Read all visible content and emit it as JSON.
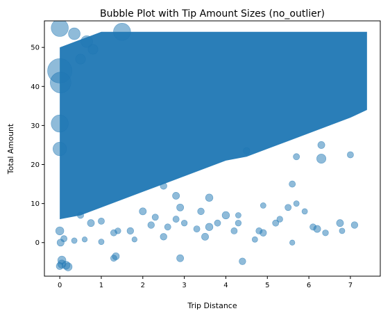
{
  "chart_data": {
    "type": "scatter",
    "title": "Bubble Plot with Tip Amount Sizes (no_outlier)",
    "xlabel": "Trip Distance",
    "ylabel": "Total Amount",
    "xlim": [
      -0.37,
      7.72
    ],
    "ylim": [
      -8.6,
      56.8
    ],
    "xticks": [
      0,
      1,
      2,
      3,
      4,
      5,
      6,
      7
    ],
    "yticks": [
      0,
      10,
      20,
      30,
      40,
      50
    ],
    "grid": false,
    "size_encoding": "tip_amount",
    "color": "#1f77b4",
    "alpha": 0.5,
    "density_band": {
      "x": [
        0,
        0.5,
        1,
        1.5,
        2,
        2.5,
        3,
        3.5,
        4,
        4.5,
        5,
        5.5,
        6,
        6.5,
        7,
        7.4
      ],
      "y_low": [
        6,
        7,
        9,
        11,
        13,
        15,
        17,
        19,
        21,
        22,
        24,
        26,
        28,
        30,
        32,
        34
      ],
      "y_high": [
        50,
        52,
        54,
        54,
        54,
        54,
        54,
        54,
        54,
        54,
        54,
        54,
        54,
        54,
        54,
        54
      ]
    },
    "points": [
      {
        "x": 0.0,
        "y": 55.0,
        "size": 4
      },
      {
        "x": 0.0,
        "y": 44.0,
        "size": 6
      },
      {
        "x": 0.02,
        "y": 41.0,
        "size": 5
      },
      {
        "x": 0.0,
        "y": 30.5,
        "size": 4
      },
      {
        "x": 0.0,
        "y": 24.0,
        "size": 3
      },
      {
        "x": 0.0,
        "y": 3.0,
        "size": 1.5
      },
      {
        "x": 0.02,
        "y": 0.0,
        "size": 1.2
      },
      {
        "x": 0.05,
        "y": -4.5,
        "size": 1.5
      },
      {
        "x": 0.05,
        "y": -5.5,
        "size": 1.5
      },
      {
        "x": 0.0,
        "y": -6.0,
        "size": 1.2
      },
      {
        "x": 0.15,
        "y": -5.8,
        "size": 1.5
      },
      {
        "x": 0.2,
        "y": -6.2,
        "size": 1.5
      },
      {
        "x": 0.1,
        "y": 1.0,
        "size": 1.0
      },
      {
        "x": 0.35,
        "y": 0.5,
        "size": 0.8
      },
      {
        "x": 0.5,
        "y": 47.0,
        "size": 2
      },
      {
        "x": 0.65,
        "y": 51.5,
        "size": 2.5
      },
      {
        "x": 0.8,
        "y": 49.5,
        "size": 2
      },
      {
        "x": 0.35,
        "y": 53.5,
        "size": 2.5
      },
      {
        "x": 1.5,
        "y": 54.0,
        "size": 4
      },
      {
        "x": 0.5,
        "y": 7.0,
        "size": 1
      },
      {
        "x": 0.75,
        "y": 5.0,
        "size": 1.2
      },
      {
        "x": 1.0,
        "y": 5.5,
        "size": 1
      },
      {
        "x": 0.6,
        "y": 0.8,
        "size": 0.7
      },
      {
        "x": 1.0,
        "y": 0.2,
        "size": 0.8
      },
      {
        "x": 1.3,
        "y": 2.5,
        "size": 1
      },
      {
        "x": 1.4,
        "y": 3.0,
        "size": 0.9
      },
      {
        "x": 1.35,
        "y": -3.5,
        "size": 1.2
      },
      {
        "x": 1.3,
        "y": -4.0,
        "size": 1
      },
      {
        "x": 1.7,
        "y": 3.0,
        "size": 1.1
      },
      {
        "x": 1.8,
        "y": 0.8,
        "size": 0.7
      },
      {
        "x": 2.0,
        "y": 8.0,
        "size": 1.2
      },
      {
        "x": 2.3,
        "y": 6.5,
        "size": 1
      },
      {
        "x": 2.2,
        "y": 4.5,
        "size": 1.1
      },
      {
        "x": 2.6,
        "y": 4.0,
        "size": 1
      },
      {
        "x": 2.5,
        "y": 1.5,
        "size": 1.1
      },
      {
        "x": 2.8,
        "y": 6.0,
        "size": 1
      },
      {
        "x": 2.9,
        "y": 9.0,
        "size": 1.2
      },
      {
        "x": 2.8,
        "y": 12.0,
        "size": 1.2
      },
      {
        "x": 2.5,
        "y": 14.5,
        "size": 1.1
      },
      {
        "x": 2.9,
        "y": -4.0,
        "size": 1.2
      },
      {
        "x": 3.0,
        "y": 5.0,
        "size": 0.9
      },
      {
        "x": 3.3,
        "y": 3.5,
        "size": 1
      },
      {
        "x": 3.4,
        "y": 8.0,
        "size": 1.1
      },
      {
        "x": 3.5,
        "y": 1.5,
        "size": 1.2
      },
      {
        "x": 3.6,
        "y": 4.0,
        "size": 1.3
      },
      {
        "x": 3.6,
        "y": 11.5,
        "size": 1.3
      },
      {
        "x": 3.8,
        "y": 5.0,
        "size": 1
      },
      {
        "x": 4.0,
        "y": 7.0,
        "size": 1.3
      },
      {
        "x": 4.2,
        "y": 3.0,
        "size": 1
      },
      {
        "x": 4.3,
        "y": 5.0,
        "size": 0.9
      },
      {
        "x": 4.3,
        "y": 7.0,
        "size": 0.8
      },
      {
        "x": 4.4,
        "y": -4.8,
        "size": 1.1
      },
      {
        "x": 4.7,
        "y": 0.8,
        "size": 0.8
      },
      {
        "x": 4.8,
        "y": 3.0,
        "size": 1
      },
      {
        "x": 4.9,
        "y": 2.5,
        "size": 1.1
      },
      {
        "x": 4.9,
        "y": 9.5,
        "size": 0.8
      },
      {
        "x": 5.2,
        "y": 5.0,
        "size": 1
      },
      {
        "x": 5.3,
        "y": 6.0,
        "size": 0.9
      },
      {
        "x": 5.5,
        "y": 9.0,
        "size": 1
      },
      {
        "x": 5.6,
        "y": 15.0,
        "size": 1
      },
      {
        "x": 5.6,
        "y": 0.0,
        "size": 0.7
      },
      {
        "x": 5.7,
        "y": 10.0,
        "size": 0.8
      },
      {
        "x": 5.9,
        "y": 8.0,
        "size": 0.8
      },
      {
        "x": 6.1,
        "y": 4.0,
        "size": 1
      },
      {
        "x": 6.2,
        "y": 3.5,
        "size": 1.2
      },
      {
        "x": 6.4,
        "y": 2.5,
        "size": 0.9
      },
      {
        "x": 6.3,
        "y": 21.5,
        "size": 1.8
      },
      {
        "x": 6.75,
        "y": 5.0,
        "size": 1.2
      },
      {
        "x": 6.8,
        "y": 3.0,
        "size": 0.8
      },
      {
        "x": 7.1,
        "y": 4.5,
        "size": 1.1
      },
      {
        "x": 7.0,
        "y": 22.5,
        "size": 1
      },
      {
        "x": 6.3,
        "y": 25.0,
        "size": 1.2
      },
      {
        "x": 4.5,
        "y": 23.5,
        "size": 1.1
      },
      {
        "x": 5.7,
        "y": 22.0,
        "size": 1
      }
    ]
  }
}
